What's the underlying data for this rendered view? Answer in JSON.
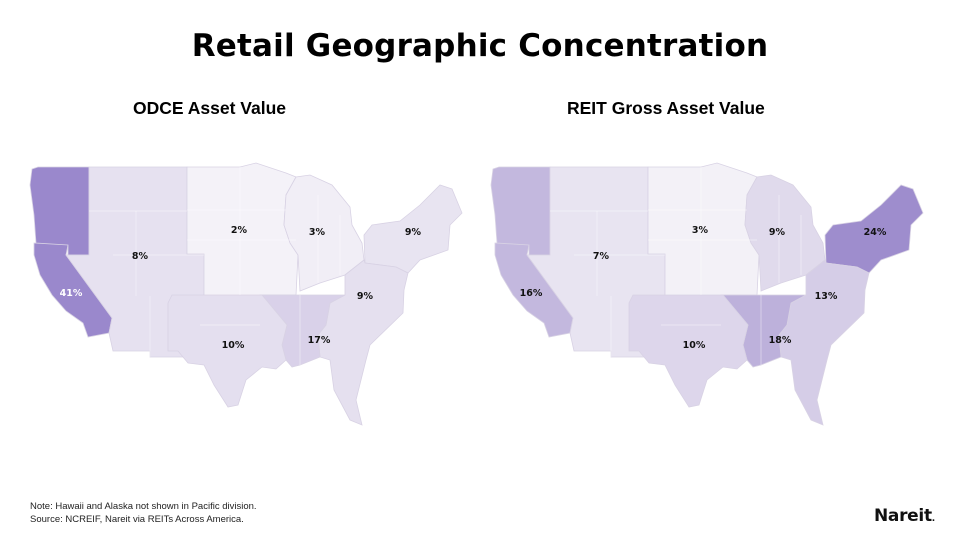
{
  "title": "Retail Geographic Concentration",
  "maps": [
    {
      "subtitle": "ODCE Asset Value",
      "regions": {
        "pacific": {
          "label": "41%",
          "color": "#9a88cc"
        },
        "mountain": {
          "label": "8%",
          "color": "#e6e1f0"
        },
        "wnc": {
          "label": "2%",
          "color": "#f4f2f8"
        },
        "enc": {
          "label": "3%",
          "color": "#f1eef6"
        },
        "ne": {
          "label": "9%",
          "color": "#e8e4f1"
        },
        "sa": {
          "label": "9%",
          "color": "#e5e0ef"
        },
        "wsc": {
          "label": "10%",
          "color": "#e4dfef"
        },
        "esc": {
          "label": "17%",
          "color": "#d9d1e9"
        }
      }
    },
    {
      "subtitle": "REIT Gross Asset Value",
      "regions": {
        "pacific": {
          "label": "16%",
          "color": "#c3b8de"
        },
        "mountain": {
          "label": "7%",
          "color": "#e8e4f1"
        },
        "wnc": {
          "label": "3%",
          "color": "#f3f1f7"
        },
        "enc": {
          "label": "9%",
          "color": "#e0daec"
        },
        "ne": {
          "label": "24%",
          "color": "#9e8dcd"
        },
        "sa": {
          "label": "13%",
          "color": "#d5cde7"
        },
        "wsc": {
          "label": "10%",
          "color": "#ddd6eb"
        },
        "esc": {
          "label": "18%",
          "color": "#bdb1db"
        }
      }
    }
  ],
  "chart_data": [
    {
      "type": "map",
      "title": "ODCE Asset Value",
      "categories": [
        "Pacific",
        "Mountain",
        "West North Central",
        "East North Central",
        "Northeast",
        "South Atlantic",
        "West South Central",
        "East South Central"
      ],
      "values": [
        41,
        8,
        2,
        3,
        9,
        9,
        10,
        17
      ],
      "unit": "%"
    },
    {
      "type": "map",
      "title": "REIT Gross Asset Value",
      "categories": [
        "Pacific",
        "Mountain",
        "West North Central",
        "East North Central",
        "Northeast",
        "South Atlantic",
        "West South Central",
        "East South Central"
      ],
      "values": [
        16,
        7,
        3,
        9,
        24,
        13,
        10,
        18
      ],
      "unit": "%"
    }
  ],
  "footer": {
    "note": "Note: Hawaii and Alaska not shown in Pacific division.",
    "source": "Source: NCREIF, Nareit via REITs Across America."
  },
  "logo": {
    "text": "Nareit",
    "suffix": "."
  }
}
